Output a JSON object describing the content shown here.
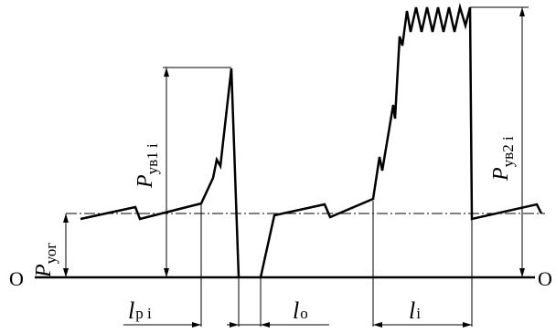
{
  "labels": {
    "origin_left": "O",
    "origin_right": "O",
    "p_yog": "P",
    "p_yog_sub": "уог",
    "p_yv1": "P",
    "p_yv1_sub": "ув1 i",
    "p_yv2": "P",
    "p_yv2_sub": "ув2 i",
    "l_pi": "l",
    "l_pi_sub": "р i",
    "l_o": "l",
    "l_o_sub": "о",
    "l_i": "l",
    "l_i_sub": "i"
  },
  "colors": {
    "line": "#000000",
    "background": "#ffffff"
  }
}
